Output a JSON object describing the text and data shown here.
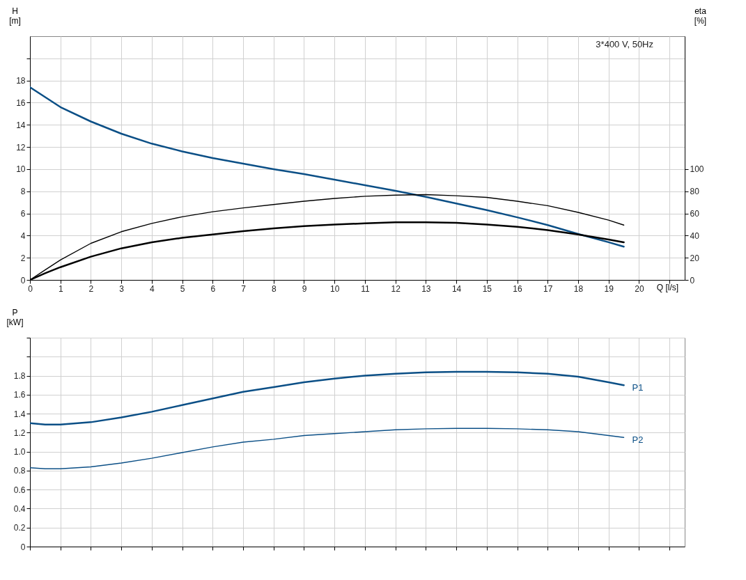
{
  "chart_data": [
    {
      "type": "line",
      "xlabel": "Q [l/s]",
      "ylabel": "H [m]",
      "y2label": "eta [%]",
      "annotations": [
        "3*400 V, 50Hz"
      ],
      "x": [
        0,
        0.5,
        1,
        2,
        3,
        4,
        5,
        6,
        7,
        8,
        9,
        10,
        11,
        12,
        13,
        14,
        15,
        16,
        17,
        18,
        19,
        19.5
      ],
      "series": [
        {
          "color": "#0b4f86",
          "values": [
            17.4,
            16.5,
            15.6,
            14.3,
            13.2,
            12.3,
            11.6,
            11.0,
            10.5,
            10.0,
            9.55,
            9.05,
            8.55,
            8.05,
            7.5,
            6.9,
            6.3,
            5.65,
            4.95,
            4.15,
            3.4,
            3.0
          ]
        },
        {
          "color": "#000000",
          "axis": "y2",
          "values": [
            0,
            9,
            18,
            33,
            43.5,
            51,
            57,
            61.5,
            65,
            68,
            71,
            73.5,
            75.5,
            76.5,
            77,
            76,
            74.5,
            71,
            67,
            61,
            54,
            49.5
          ]
        },
        {
          "color": "#000000",
          "axis": "y2",
          "values": [
            0,
            6,
            11.5,
            21,
            28.5,
            34,
            38,
            41,
            44,
            46.5,
            48.5,
            50,
            51,
            52,
            52,
            51.5,
            50,
            48,
            45,
            41,
            36.5,
            34
          ]
        }
      ],
      "xlim": [
        0,
        21.5
      ],
      "xticks": [
        0,
        1,
        2,
        3,
        4,
        5,
        6,
        7,
        8,
        9,
        10,
        11,
        12,
        13,
        14,
        15,
        16,
        17,
        18,
        19,
        20,
        {
          "value": 21,
          "label": null
        }
      ],
      "ylim": [
        0,
        22
      ],
      "yticks": [
        0,
        2,
        4,
        6,
        8,
        10,
        12,
        14,
        16,
        18,
        {
          "value": 20,
          "label": null
        }
      ],
      "y2lim": [
        0,
        220
      ],
      "y2ticks": [
        0,
        20,
        40,
        60,
        80,
        100
      ],
      "grid": true,
      "marker": "none",
      "line_style": "solid"
    },
    {
      "type": "line",
      "ylabel": "P [kW]",
      "x": [
        0,
        0.5,
        1,
        2,
        3,
        4,
        5,
        6,
        7,
        8,
        9,
        10,
        11,
        12,
        13,
        14,
        15,
        16,
        17,
        18,
        19,
        19.5
      ],
      "series": [
        {
          "name": "P1",
          "color": "#0b4f86",
          "values": [
            1.3,
            1.285,
            1.285,
            1.31,
            1.36,
            1.42,
            1.49,
            1.56,
            1.63,
            1.68,
            1.73,
            1.77,
            1.8,
            1.82,
            1.835,
            1.84,
            1.84,
            1.835,
            1.82,
            1.79,
            1.73,
            1.7
          ]
        },
        {
          "name": "P2",
          "color": "#0b4f86",
          "values": [
            0.83,
            0.82,
            0.82,
            0.84,
            0.88,
            0.93,
            0.99,
            1.05,
            1.1,
            1.13,
            1.17,
            1.19,
            1.21,
            1.23,
            1.24,
            1.245,
            1.245,
            1.24,
            1.23,
            1.21,
            1.17,
            1.15
          ]
        }
      ],
      "xlim": [
        0,
        21.5
      ],
      "xticks": [
        0,
        1,
        2,
        3,
        4,
        5,
        6,
        7,
        8,
        9,
        10,
        11,
        12,
        13,
        14,
        15,
        16,
        17,
        18,
        19,
        20,
        {
          "value": 21,
          "label": null
        }
      ],
      "ylim": [
        0,
        2.2
      ],
      "yticks": [
        0,
        0.2,
        0.4,
        0.6,
        0.8,
        {
          "value": 1,
          "label": "1.0"
        },
        1.2,
        1.4,
        1.6,
        1.8,
        {
          "value": 2,
          "label": null
        },
        {
          "value": 2.2,
          "label": null
        }
      ],
      "tick_labels": "y",
      "grid": true,
      "marker": "none",
      "line_style": "solid"
    }
  ]
}
